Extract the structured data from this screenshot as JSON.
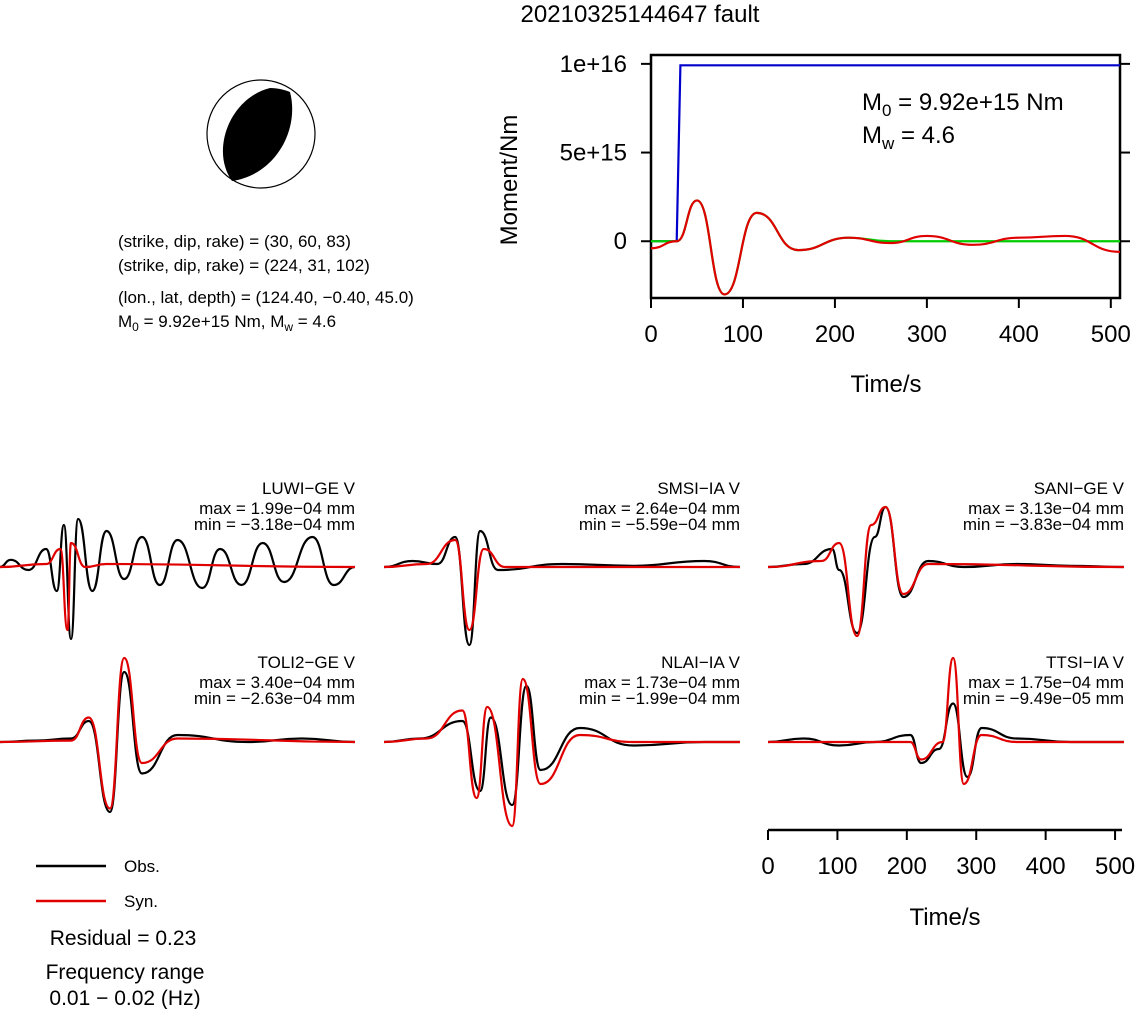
{
  "title": "20210325144647 fault",
  "mechanism": {
    "np1": "(strike, dip, rake) = (30, 60, 83)",
    "np2": "(strike, dip, rake) = (224, 31, 102)",
    "location": "(lon., lat, depth) = (124.40, −0.40, 45.0)",
    "magnitude_base": "M",
    "magnitude_sub": "0",
    "magnitude_rest": " = 9.92e+15 Nm, M",
    "magnitude_sub2": "w",
    "magnitude_tail": " = 4.6"
  },
  "moment_panel": {
    "ylabel": "Moment/Nm",
    "xlabel": "Time/s",
    "m0_base": "M",
    "m0_sub": "0",
    "m0_tail": " = 9.92e+15 Nm",
    "mw_base": "M",
    "mw_sub": "w",
    "mw_tail": " = 4.6",
    "yticks": [
      "1e+16",
      "5e+15",
      "0"
    ],
    "xticks": [
      "0",
      "100",
      "200",
      "300",
      "400",
      "500"
    ]
  },
  "waveform_axis": {
    "xlabel": "Time/s",
    "xticks": [
      "0",
      "100",
      "200",
      "300",
      "400",
      "500"
    ]
  },
  "legend": {
    "obs": "Obs.",
    "syn": "Syn.",
    "obs_color": "#000000",
    "syn_color": "#e00000"
  },
  "residual": "Residual = 0.23",
  "freq_label": "Frequency range",
  "freq_value": "0.01 − 0.02 (Hz)",
  "stations": [
    {
      "name": "LUWI−GE V",
      "max": "max = 1.99e−04 mm",
      "min": "min = −3.18e−04 mm"
    },
    {
      "name": "SMSI−IA V",
      "max": "max = 2.64e−04 mm",
      "min": "min = −5.59e−04 mm"
    },
    {
      "name": "SANI−GE V",
      "max": "max = 3.13e−04 mm",
      "min": "min = −3.83e−04 mm"
    },
    {
      "name": "TOLI2−GE V",
      "max": "max = 3.40e−04 mm",
      "min": "min = −2.63e−04 mm"
    },
    {
      "name": "NLAI−IA V",
      "max": "max = 1.73e−04 mm",
      "min": "min = −1.99e−04 mm"
    },
    {
      "name": "TTSI−IA V",
      "max": "max = 1.75e−04 mm",
      "min": "min = −9.49e−05 mm"
    }
  ],
  "chart_data": [
    {
      "type": "line",
      "title": "",
      "xlabel": "Time/s",
      "ylabel": "Moment/Nm",
      "xlim": [
        0,
        510
      ],
      "ylim": [
        -3200000000000000.0,
        1.05e+16
      ],
      "series": [
        {
          "color": "#0000cc",
          "x": [
            0,
            28,
            32,
            510
          ],
          "y": [
            0,
            0,
            9920000000000000.0,
            9920000000000000.0
          ]
        },
        {
          "color": "#00cc00",
          "x": [
            0,
            28,
            50,
            80,
            115,
            160,
            215,
            260,
            510
          ],
          "y": [
            0,
            0,
            2300000000000000.0,
            -3000000000000000.0,
            1600000000000000.0,
            -500000000000000.0,
            200000000000000.0,
            0,
            0
          ]
        },
        {
          "color": "#e00000",
          "x": [
            0,
            28,
            50,
            80,
            115,
            160,
            215,
            260,
            300,
            350,
            400,
            450,
            510
          ],
          "y": [
            -400000000000000.0,
            0,
            2300000000000000.0,
            -3000000000000000.0,
            1600000000000000.0,
            -500000000000000.0,
            200000000000000.0,
            -100000000000000.0,
            300000000000000.0,
            -200000000000000.0,
            200000000000000.0,
            300000000000000.0,
            -600000000000000.0
          ]
        }
      ]
    },
    {
      "type": "line",
      "title": "",
      "xlabel": "Time/s",
      "ylabel": "",
      "xlim": [
        0,
        510
      ],
      "xticks": [
        0,
        100,
        200,
        300,
        400,
        500
      ]
    }
  ]
}
